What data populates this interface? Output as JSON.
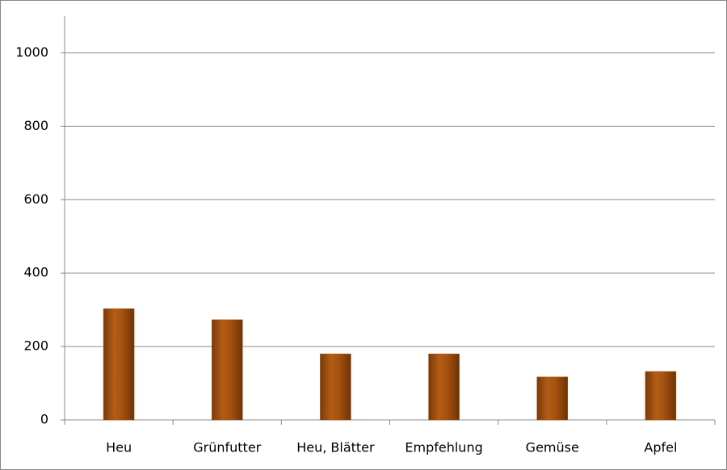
{
  "chart_data": {
    "type": "bar",
    "categories": [
      "Heu",
      "Grünfutter",
      "Heu, Blätter",
      "Empfehlung",
      "Gemüse",
      "Apfel"
    ],
    "values": [
      303,
      273,
      180,
      180,
      117,
      132
    ],
    "color": "#a5520f",
    "ylim": [
      0,
      1100
    ],
    "yticks": [
      0,
      200,
      400,
      600,
      800,
      1000
    ],
    "grid": true
  }
}
